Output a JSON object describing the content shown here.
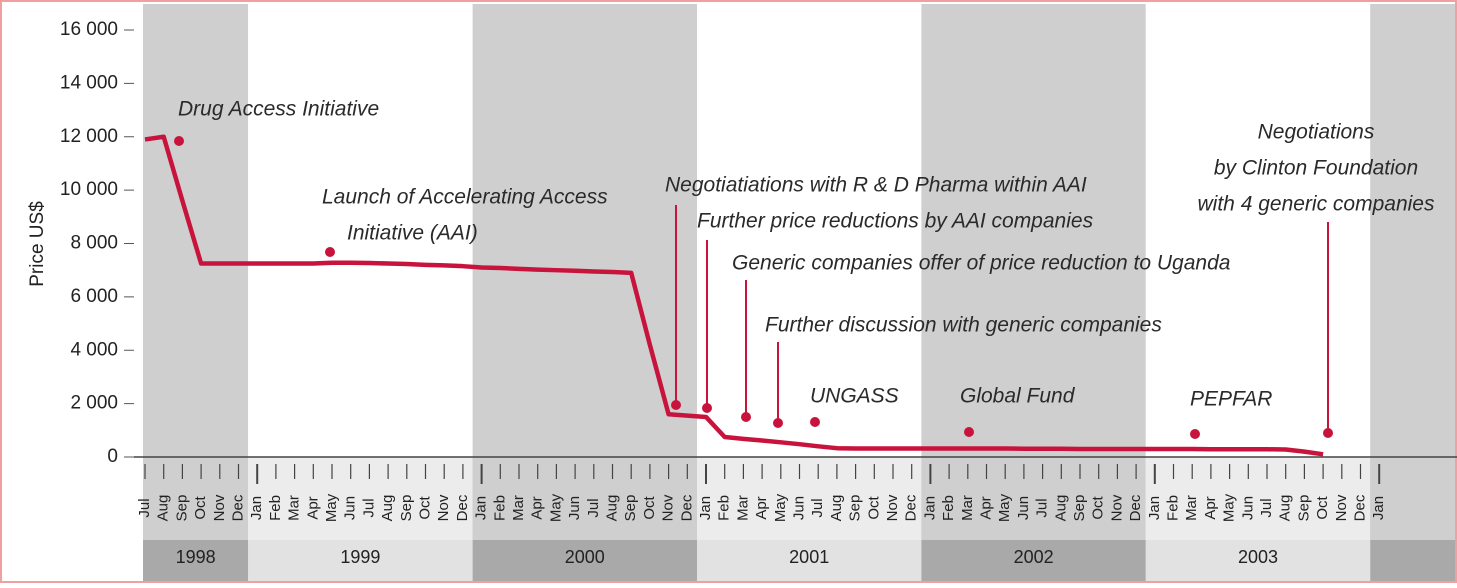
{
  "chart_data": {
    "type": "line",
    "y_label": "Price US$",
    "categories": [
      "Jul",
      "Aug",
      "Sep",
      "Oct",
      "Nov",
      "Dec",
      "Jan",
      "Feb",
      "Mar",
      "Apr",
      "May",
      "Jun",
      "Jul",
      "Aug",
      "Sep",
      "Oct",
      "Nov",
      "Dec",
      "Jan",
      "Feb",
      "Mar",
      "Apr",
      "May",
      "Jun",
      "Jul",
      "Aug",
      "Sep",
      "Oct",
      "Nov",
      "Dec",
      "Jan",
      "Feb",
      "Mar",
      "Apr",
      "May",
      "Jun",
      "Jul",
      "Aug",
      "Sep",
      "Oct",
      "Nov",
      "Dec",
      "Jan",
      "Feb",
      "Mar",
      "Apr",
      "May",
      "Jun",
      "Jul",
      "Aug",
      "Sep",
      "Oct",
      "Nov",
      "Dec",
      "Jan",
      "Feb",
      "Mar",
      "Apr",
      "May",
      "Jun",
      "Jul",
      "Aug",
      "Sep",
      "Oct",
      "Nov",
      "Dec",
      "Jan"
    ],
    "years": [
      "1998",
      "1999",
      "2000",
      "2001",
      "2002",
      "2003"
    ],
    "series": [
      {
        "color": "#c8143c",
        "values": [
          11900,
          12000,
          9600,
          7250,
          7250,
          7250,
          7250,
          7250,
          7250,
          7250,
          7280,
          7280,
          7270,
          7250,
          7230,
          7200,
          7180,
          7150,
          7100,
          7080,
          7050,
          7020,
          7000,
          6980,
          6950,
          6930,
          6900,
          4200,
          1600,
          1550,
          1500,
          750,
          680,
          620,
          550,
          480,
          400,
          330,
          320,
          320,
          320,
          320,
          320,
          320,
          320,
          320,
          320,
          310,
          310,
          310,
          300,
          300,
          300,
          300,
          300,
          300,
          300,
          290,
          290,
          290,
          290,
          280,
          200,
          100,
          null,
          null,
          null
        ]
      }
    ],
    "ylim": [
      0,
      16000
    ],
    "yticks": [
      0,
      {
        "value": 2000,
        "label": "2 000"
      },
      {
        "value": 4000,
        "label": "4 000"
      },
      {
        "value": 6000,
        "label": "6 000"
      },
      {
        "value": 8000,
        "label": "8 000"
      },
      {
        "value": 10000,
        "label": "10 000"
      },
      {
        "value": 12000,
        "label": "12 000"
      },
      {
        "value": 14000,
        "label": "14 000"
      },
      {
        "value": 16000,
        "label": "16 000"
      }
    ],
    "annotations": [
      {
        "lines": [
          "Drug Access Initiative"
        ]
      },
      {
        "lines": [
          "Launch of Accelerating Access",
          "Initiative (AAI)"
        ]
      },
      {
        "lines": [
          "Negotiatiations with R & D Pharma within AAI"
        ]
      },
      {
        "lines": [
          "Further price reductions by AAI companies"
        ]
      },
      {
        "lines": [
          "Generic companies offer of price reduction to Uganda"
        ]
      },
      {
        "lines": [
          "Further discussion with generic companies"
        ]
      },
      {
        "lines": [
          "UNGASS"
        ]
      },
      {
        "lines": [
          "Global Fund"
        ]
      },
      {
        "lines": [
          "PEPFAR"
        ]
      },
      {
        "lines": [
          "Negotiations",
          "by Clinton Foundation",
          "with 4 generic companies"
        ]
      }
    ]
  }
}
